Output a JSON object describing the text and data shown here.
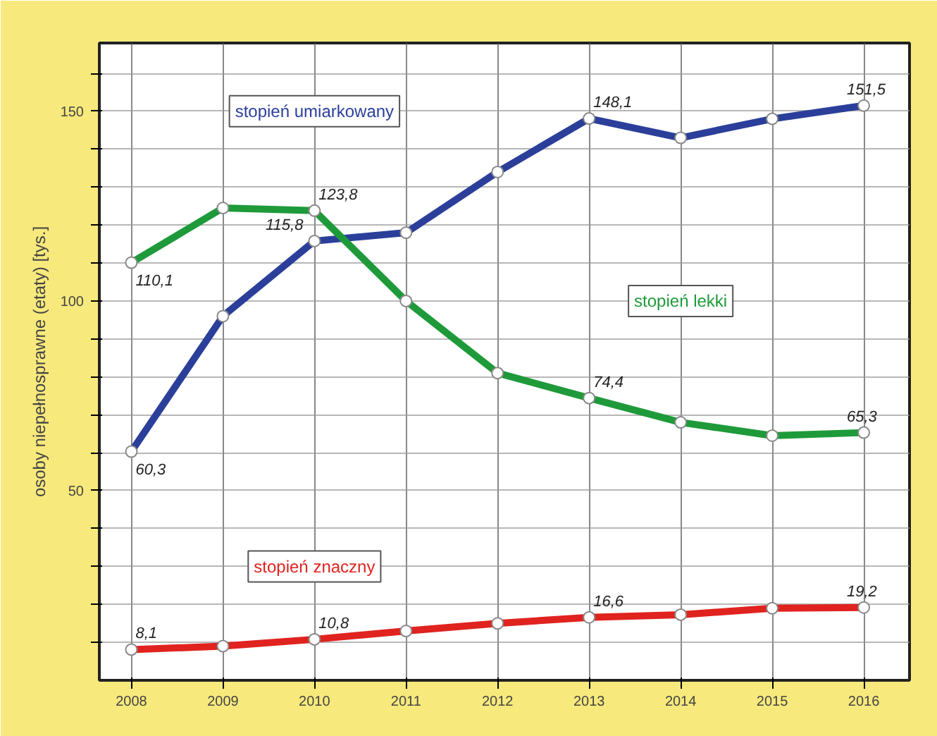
{
  "chart_data": {
    "type": "line",
    "ylabel": "osoby niepełnosprawne (etaty) [tys.]",
    "categories": [
      "2008",
      "2009",
      "2010",
      "2011",
      "2012",
      "2013",
      "2014",
      "2015",
      "2016"
    ],
    "series": [
      {
        "name": "stopień umiarkowany",
        "color": "#2b3f9a",
        "values": [
          60.3,
          96,
          115.8,
          118,
          134,
          148.1,
          143,
          148,
          151.5
        ],
        "value_labels": [
          "60,3",
          null,
          "115,8",
          null,
          null,
          "148,1",
          null,
          null,
          "151,5"
        ]
      },
      {
        "name": "stopień lekki",
        "color": "#1f9a3a",
        "values": [
          110.1,
          124.5,
          123.8,
          100,
          81,
          74.4,
          68,
          64.5,
          65.3
        ],
        "value_labels": [
          "110,1",
          null,
          "123,8",
          null,
          null,
          "74,4",
          null,
          null,
          "65,3"
        ]
      },
      {
        "name": "stopień znaczny",
        "color": "#e0231f",
        "values": [
          8.1,
          9,
          10.8,
          13,
          15,
          16.6,
          17.3,
          19,
          19.2
        ],
        "value_labels": [
          "8,1",
          null,
          "10,8",
          null,
          null,
          "16,6",
          null,
          null,
          "19,2"
        ]
      }
    ],
    "ylim": [
      0,
      168
    ],
    "yticks": [
      {
        "value": 10,
        "label": null
      },
      {
        "value": 20,
        "label": null
      },
      {
        "value": 30,
        "label": null
      },
      {
        "value": 40,
        "label": null
      },
      50,
      {
        "value": 60,
        "label": null
      },
      {
        "value": 70,
        "label": null
      },
      {
        "value": 80,
        "label": null
      },
      {
        "value": 90,
        "label": null
      },
      100,
      {
        "value": 110,
        "label": null
      },
      {
        "value": 120,
        "label": null
      },
      {
        "value": 130,
        "label": null
      },
      {
        "value": 140,
        "label": null
      },
      150,
      {
        "value": 160,
        "label": null
      }
    ],
    "grid": true,
    "marker": "circle",
    "line_style": "solid"
  }
}
